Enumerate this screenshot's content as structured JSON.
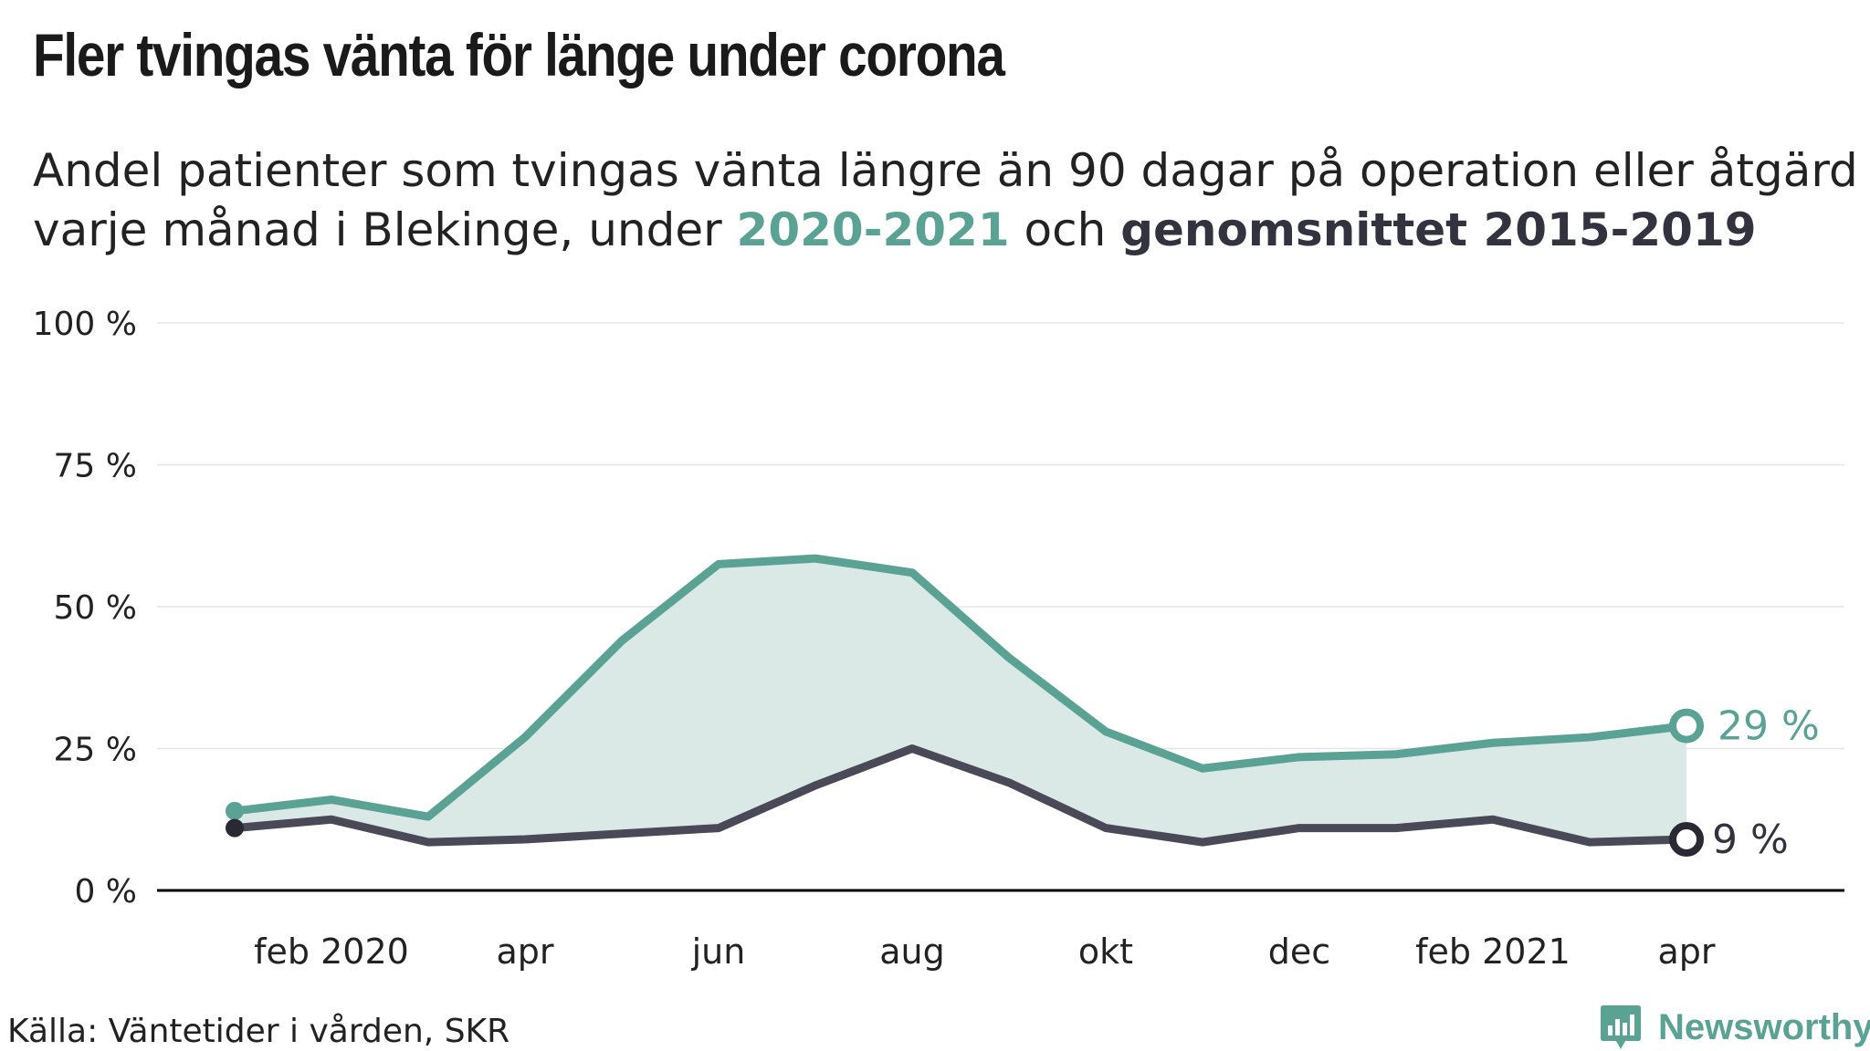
{
  "title": "Fler tvingas vänta för länge under corona",
  "subtitle": {
    "part1": "Andel patienter som tvingas vänta längre än 90 dagar på operation eller åtgärd varje månad i Blekinge, under ",
    "series1_label": "2020-2021",
    "part2": " och ",
    "series2_label": "genomsnittet 2015-2019"
  },
  "source": "Källa: Väntetider i vården, SKR",
  "brand": {
    "name": "Newsworthy",
    "icon": "newsworthy-logo-icon"
  },
  "colors": {
    "series_2020_2021": "#5aa294",
    "average_2015_2019": "#4a4957",
    "area_fill": "#dbe9e6",
    "grid": "#e6e6e6",
    "axis": "#000000"
  },
  "chart_data": {
    "type": "line",
    "months": [
      "2020-01",
      "2020-02",
      "2020-03",
      "2020-04",
      "2020-05",
      "2020-06",
      "2020-07",
      "2020-08",
      "2020-09",
      "2020-10",
      "2020-11",
      "2020-12",
      "2021-01",
      "2021-02",
      "2021-03",
      "2021-04"
    ],
    "x_tick_labels": [
      {
        "month": "2020-02",
        "label": "feb 2020"
      },
      {
        "month": "2020-04",
        "label": "apr"
      },
      {
        "month": "2020-06",
        "label": "jun"
      },
      {
        "month": "2020-08",
        "label": "aug"
      },
      {
        "month": "2020-10",
        "label": "okt"
      },
      {
        "month": "2020-12",
        "label": "dec"
      },
      {
        "month": "2021-02",
        "label": "feb 2021"
      },
      {
        "month": "2021-04",
        "label": "apr"
      }
    ],
    "y_ticks": [
      {
        "value": 0,
        "label": "0 %"
      },
      {
        "value": 25,
        "label": "25 %"
      },
      {
        "value": 50,
        "label": "50 %"
      },
      {
        "value": 75,
        "label": "75 %"
      },
      {
        "value": 100,
        "label": "100 %"
      }
    ],
    "ylim": [
      0,
      100
    ],
    "grid": true,
    "series": [
      {
        "name": "2020-2021",
        "values": [
          14,
          16,
          13,
          27,
          44,
          57.5,
          58.5,
          56,
          41,
          28,
          21.5,
          23.5,
          24,
          26,
          27,
          29
        ],
        "end_label": "29 %"
      },
      {
        "name": "genomsnittet 2015-2019",
        "values": [
          11,
          12.5,
          8.5,
          9,
          10,
          11,
          18.5,
          25,
          19,
          11,
          8.5,
          11,
          11,
          12.5,
          8.5,
          9
        ],
        "end_label": "9 %"
      }
    ]
  }
}
